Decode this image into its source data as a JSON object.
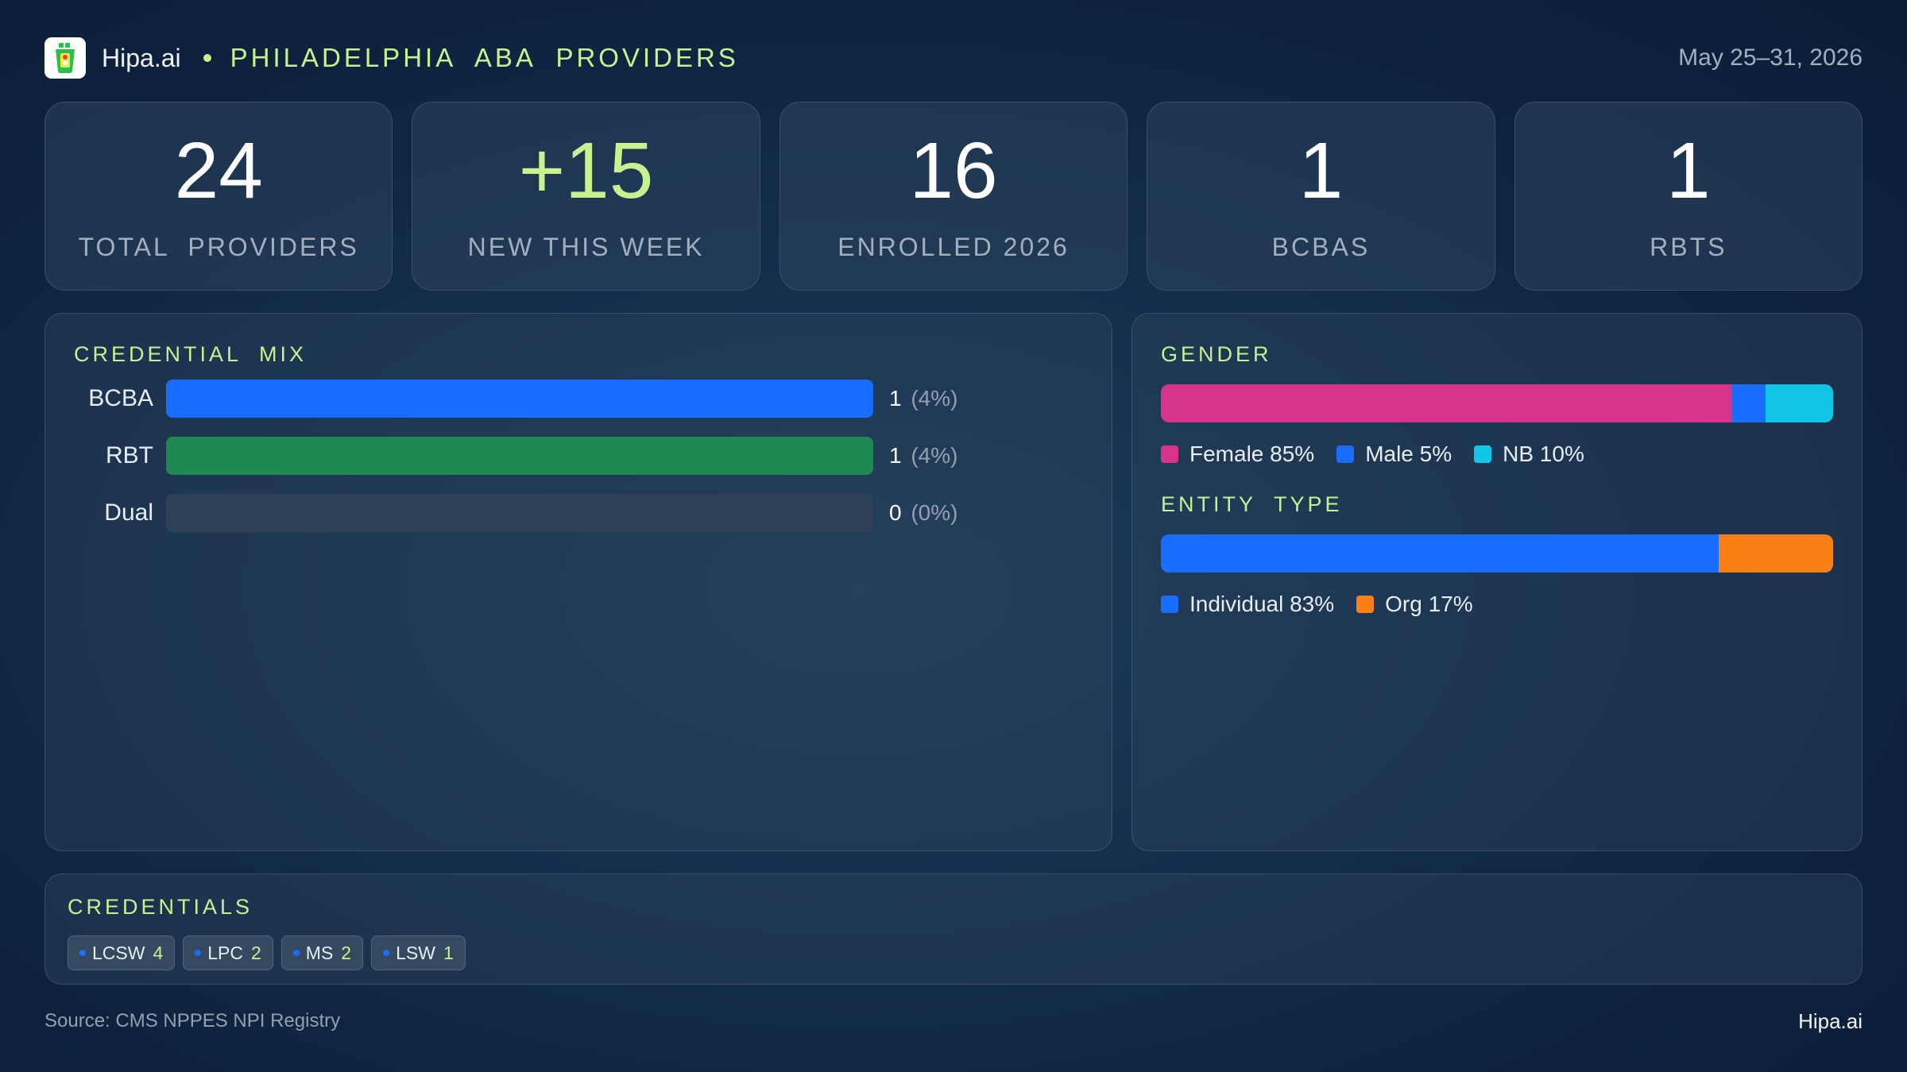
{
  "header": {
    "brand": "Hipa.ai",
    "title": "PHILADELPHIA  ABA  PROVIDERS",
    "date_range": "May 25–31, 2026"
  },
  "kpis": [
    {
      "value": "24",
      "label": "TOTAL  PROVIDERS",
      "accent": false
    },
    {
      "value": "+15",
      "label": "NEW THIS WEEK",
      "accent": true
    },
    {
      "value": "16",
      "label": "ENROLLED 2026",
      "accent": false
    },
    {
      "value": "1",
      "label": "BCBAS",
      "accent": false
    },
    {
      "value": "1",
      "label": "RBTS",
      "accent": false
    }
  ],
  "credential_mix": {
    "title": "CREDENTIAL  MIX",
    "rows": [
      {
        "label": "BCBA",
        "count": "1",
        "pct": "(4%)",
        "fill": 1.0,
        "color": "#1a6eff"
      },
      {
        "label": "RBT",
        "count": "1",
        "pct": "(4%)",
        "fill": 1.0,
        "color": "#1e8a52"
      },
      {
        "label": "Dual",
        "count": "0",
        "pct": "(0%)",
        "fill": 0.0,
        "color": "#1a6eff"
      }
    ]
  },
  "gender": {
    "title": "GENDER",
    "segments": [
      {
        "label": "Female 85%",
        "share": 85,
        "color": "#d6348a"
      },
      {
        "label": "Male 5%",
        "share": 5,
        "color": "#1a6eff"
      },
      {
        "label": "NB 10%",
        "share": 10,
        "color": "#12c6e8"
      }
    ]
  },
  "entity_type": {
    "title": "ENTITY  TYPE",
    "segments": [
      {
        "label": "Individual 83%",
        "share": 83,
        "color": "#1a6eff"
      },
      {
        "label": "Org 17%",
        "share": 17,
        "color": "#f98016"
      }
    ]
  },
  "credentials": {
    "title": "CREDENTIALS",
    "chips": [
      {
        "name": "LCSW",
        "count": "4"
      },
      {
        "name": "LPC",
        "count": "2"
      },
      {
        "name": "MS",
        "count": "2"
      },
      {
        "name": "LSW",
        "count": "1"
      }
    ]
  },
  "footer": {
    "source": "Source: CMS NPPES NPI Registry",
    "brand": "Hipa.ai"
  },
  "colors": {
    "accent": "#c6f28f",
    "primary_blue": "#1a6eff"
  }
}
